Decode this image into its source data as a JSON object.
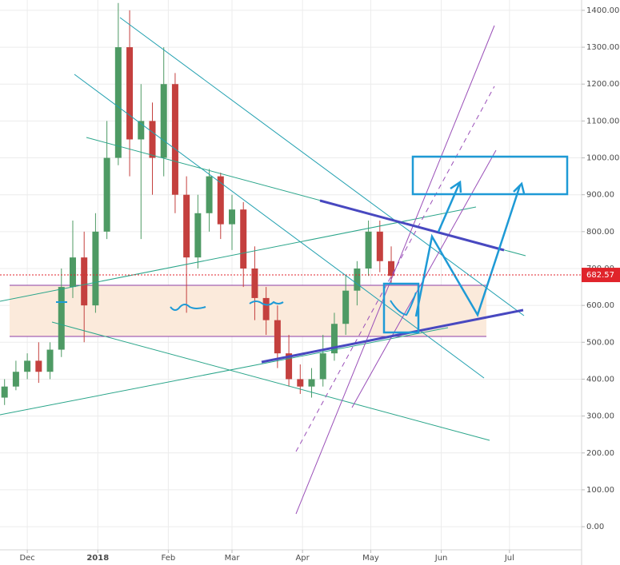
{
  "chart_data": {
    "type": "candlestick",
    "x": [
      -10,
      -5,
      0,
      5,
      10,
      15,
      20,
      25,
      30,
      35,
      40,
      45,
      50,
      55,
      60,
      65,
      70,
      75,
      80,
      85,
      90,
      95,
      100,
      105,
      110,
      115,
      120,
      125,
      130,
      135,
      140,
      145,
      150,
      155,
      160
    ],
    "open": [
      350,
      380,
      420,
      450,
      420,
      480,
      650,
      730,
      600,
      800,
      1000,
      1300,
      1050,
      1100,
      1000,
      1200,
      900,
      730,
      850,
      950,
      820,
      860,
      700,
      620,
      560,
      470,
      400,
      380,
      400,
      470,
      550,
      640,
      700,
      800,
      720
    ],
    "high": [
      400,
      450,
      470,
      500,
      500,
      700,
      830,
      800,
      850,
      1100,
      1420,
      1400,
      1200,
      1150,
      1300,
      1230,
      950,
      900,
      970,
      960,
      900,
      880,
      760,
      650,
      600,
      520,
      440,
      430,
      520,
      580,
      680,
      720,
      830,
      830,
      760
    ],
    "low": [
      330,
      370,
      400,
      390,
      400,
      460,
      620,
      500,
      580,
      780,
      980,
      950,
      780,
      900,
      950,
      850,
      580,
      700,
      800,
      780,
      750,
      650,
      560,
      520,
      430,
      380,
      360,
      350,
      380,
      450,
      520,
      600,
      680,
      690,
      660
    ],
    "close": [
      380,
      420,
      450,
      420,
      480,
      650,
      730,
      600,
      800,
      1000,
      1300,
      1050,
      1100,
      1000,
      1200,
      900,
      730,
      850,
      950,
      820,
      860,
      700,
      620,
      560,
      470,
      400,
      380,
      400,
      470,
      550,
      640,
      700,
      800,
      720,
      680
    ],
    "up_color": "#4e9a64",
    "down_color": "#c4403e",
    "xlim": [
      -12,
      243
    ],
    "xticks": [
      {
        "value": 0,
        "label": "Dec"
      },
      {
        "value": 31,
        "label": "2018"
      },
      {
        "value": 62,
        "label": "Feb"
      },
      {
        "value": 90,
        "label": "Mar"
      },
      {
        "value": 121,
        "label": "Apr"
      },
      {
        "value": 151,
        "label": "May"
      },
      {
        "value": 182,
        "label": "Jun"
      },
      {
        "value": 212,
        "label": "Jul"
      }
    ],
    "ylim": [
      -67,
      1428
    ],
    "yticks": [
      {
        "value": 0,
        "label": "0.00"
      },
      {
        "value": 100,
        "label": "100.00"
      },
      {
        "value": 200,
        "label": "200.00"
      },
      {
        "value": 300,
        "label": "300.00"
      },
      {
        "value": 400,
        "label": "400.00"
      },
      {
        "value": 500,
        "label": "500.00"
      },
      {
        "value": 600,
        "label": "600.00"
      },
      {
        "value": 700,
        "label": "700.00"
      },
      {
        "value": 800,
        "label": "800.00"
      },
      {
        "value": 900,
        "label": "900.00"
      },
      {
        "value": 1000,
        "label": "1000.00"
      },
      {
        "value": 1100,
        "label": "1100.00"
      },
      {
        "value": 1200,
        "label": "1200.00"
      },
      {
        "value": 1300,
        "label": "1300.00"
      },
      {
        "value": 1400,
        "label": "1400.00"
      }
    ],
    "last_price": 682.57,
    "last_price_color": "#e0242b",
    "grid": true
  }
}
